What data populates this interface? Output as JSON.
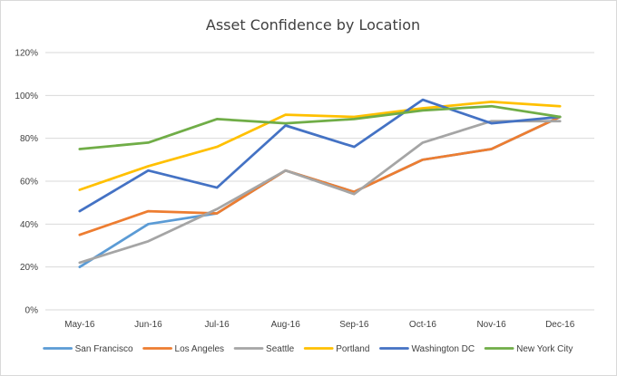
{
  "chart_data": {
    "type": "line",
    "title": "Asset Confidence by Location",
    "xlabel": "",
    "ylabel": "",
    "categories": [
      "May-16",
      "Jun-16",
      "Jul-16",
      "Aug-16",
      "Sep-16",
      "Oct-16",
      "Nov-16",
      "Dec-16"
    ],
    "ylim": [
      0,
      120
    ],
    "yticks": [
      0,
      20,
      40,
      60,
      80,
      100,
      120
    ],
    "ytick_labels": [
      "0%",
      "20%",
      "40%",
      "60%",
      "80%",
      "100%",
      "120%"
    ],
    "grid": "horizontal",
    "legend": "bottom",
    "series": [
      {
        "name": "San Francisco",
        "color": "#5b9bd5",
        "values": [
          20,
          40,
          45,
          65,
          55,
          70,
          75,
          90
        ]
      },
      {
        "name": "Los Angeles",
        "color": "#ed7d31",
        "values": [
          35,
          46,
          45,
          65,
          55,
          70,
          75,
          90
        ]
      },
      {
        "name": "Seattle",
        "color": "#a5a5a5",
        "values": [
          22,
          32,
          47,
          65,
          54,
          78,
          88,
          88
        ]
      },
      {
        "name": "Portland",
        "color": "#ffc000",
        "values": [
          56,
          67,
          76,
          91,
          90,
          94,
          97,
          95
        ]
      },
      {
        "name": "Washington DC",
        "color": "#4472c4",
        "values": [
          46,
          65,
          57,
          86,
          76,
          98,
          87,
          90
        ]
      },
      {
        "name": "New York City",
        "color": "#70ad47",
        "values": [
          75,
          78,
          89,
          87,
          89,
          93,
          95,
          90
        ]
      }
    ]
  }
}
